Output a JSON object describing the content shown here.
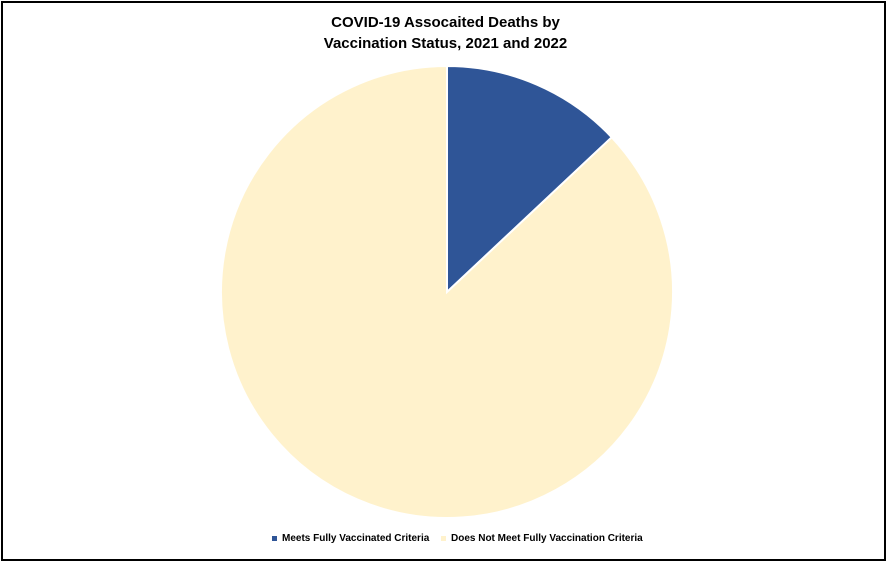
{
  "chart_data": {
    "type": "pie",
    "title_lines": [
      "COVID-19 Assocaited Deaths by",
      "Vaccination Status, 2021 and 2022"
    ],
    "categories": [
      "Meets Fully Vaccinated Criteria",
      "Does Not Meet Fully Vaccination Criteria"
    ],
    "values": [
      13,
      87
    ],
    "colors": [
      "#2f5597",
      "#fff2cc"
    ],
    "legend_position": "bottom"
  }
}
